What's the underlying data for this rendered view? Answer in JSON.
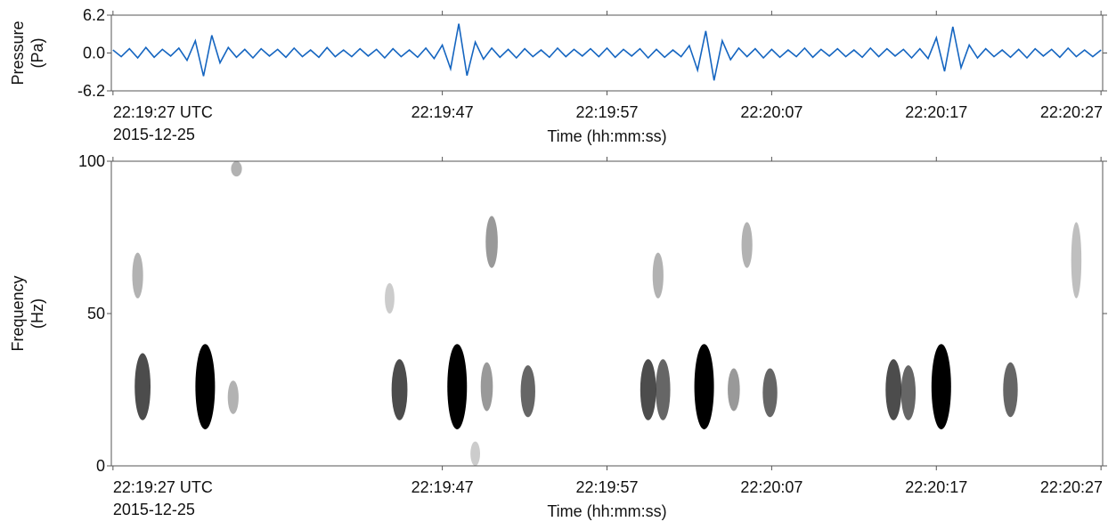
{
  "chart_data": [
    {
      "type": "line",
      "ylabel": [
        "Pressure",
        "(Pa)"
      ],
      "xlabel": "Time (hh:mm:ss)",
      "x_date": "2015-12-25",
      "color": "#1565c0",
      "xlim": [
        -0.1,
        60.1
      ],
      "ylim": [
        -6.2,
        6.2
      ],
      "yticks": [
        -6.2,
        {
          "value": 0,
          "label": "0.0"
        },
        6.2
      ],
      "xticks": [
        {
          "value": 0,
          "label": "22:19:27 UTC"
        },
        {
          "value": 20,
          "label": "22:19:47"
        },
        {
          "value": 30,
          "label": "22:19:57"
        },
        {
          "value": 40,
          "label": "22:20:07"
        },
        {
          "value": 50,
          "label": "22:20:17"
        },
        {
          "value": 60,
          "label": "22:20:27"
        }
      ],
      "x": [
        0,
        0.5,
        1,
        1.5,
        2,
        2.5,
        3,
        3.5,
        4,
        4.5,
        5,
        5.5,
        6,
        6.5,
        7,
        7.5,
        8,
        8.5,
        9,
        9.5,
        10,
        10.5,
        11,
        11.5,
        12,
        12.5,
        13,
        13.5,
        14,
        14.5,
        15,
        15.5,
        16,
        16.5,
        17,
        17.5,
        18,
        18.5,
        19,
        19.5,
        20,
        20.5,
        21,
        21.5,
        22,
        22.5,
        23,
        23.5,
        24,
        24.5,
        25,
        25.5,
        26,
        26.5,
        27,
        27.5,
        28,
        28.5,
        29,
        29.5,
        30,
        30.5,
        31,
        31.5,
        32,
        32.5,
        33,
        33.5,
        34,
        34.5,
        35,
        35.5,
        36,
        36.5,
        37,
        37.5,
        38,
        38.5,
        39,
        39.5,
        40,
        40.5,
        41,
        41.5,
        42,
        42.5,
        43,
        43.5,
        44,
        44.5,
        45,
        45.5,
        46,
        46.5,
        47,
        47.5,
        48,
        48.5,
        49,
        49.5,
        50,
        50.5,
        51,
        51.5,
        52,
        52.5,
        53,
        53.5,
        54,
        54.5,
        55,
        55.5,
        56,
        56.5,
        57,
        57.5,
        58,
        58.5,
        59,
        59.5,
        60
      ],
      "values": [
        0.5,
        -0.6,
        0.7,
        -0.8,
        0.9,
        -0.7,
        0.6,
        -0.5,
        0.8,
        -1.2,
        2.0,
        -3.8,
        2.9,
        -1.6,
        0.9,
        -0.7,
        0.6,
        -0.8,
        0.7,
        -0.5,
        0.6,
        -0.7,
        0.8,
        -0.6,
        0.5,
        -0.7,
        0.9,
        -0.6,
        0.5,
        -0.6,
        0.7,
        -0.5,
        0.6,
        -0.8,
        0.7,
        -0.6,
        0.5,
        -0.7,
        0.8,
        -0.9,
        1.3,
        -2.6,
        4.8,
        -3.7,
        1.8,
        -1.0,
        0.8,
        -0.7,
        0.6,
        -0.8,
        0.7,
        -0.6,
        0.5,
        -0.7,
        0.8,
        -0.6,
        0.6,
        -0.5,
        0.7,
        -0.6,
        0.8,
        -0.7,
        0.6,
        -0.5,
        0.7,
        -0.8,
        0.6,
        -0.7,
        0.5,
        -0.6,
        1.2,
        -2.8,
        3.6,
        -4.5,
        2.0,
        -1.1,
        0.8,
        -0.6,
        0.7,
        -0.8,
        0.6,
        -0.7,
        0.5,
        -0.6,
        0.8,
        -0.7,
        0.6,
        -0.5,
        0.7,
        -0.6,
        0.5,
        -0.7,
        0.8,
        -0.6,
        0.7,
        -0.5,
        0.6,
        -0.8,
        0.7,
        -0.9,
        2.5,
        -3.0,
        4.3,
        -2.4,
        1.3,
        -0.8,
        0.7,
        -0.6,
        0.5,
        -0.7,
        0.6,
        -0.8,
        0.7,
        -0.5,
        0.6,
        -0.7,
        0.8,
        -0.6,
        0.5,
        -0.6,
        0.5
      ]
    },
    {
      "type": "spectrogram",
      "ylabel": [
        "Frequency",
        "(Hz)"
      ],
      "xlabel": "Time (hh:mm:ss)",
      "x_date": "2015-12-25",
      "color": "#000000",
      "xlim": [
        -0.1,
        60.1
      ],
      "ylim": [
        0,
        100
      ],
      "yticks": [
        0,
        50,
        100
      ],
      "xticks": [
        {
          "value": 0,
          "label": "22:19:27 UTC"
        },
        {
          "value": 20,
          "label": "22:19:47"
        },
        {
          "value": 30,
          "label": "22:19:57"
        },
        {
          "value": 40,
          "label": "22:20:07"
        },
        {
          "value": 50,
          "label": "22:20:17"
        },
        {
          "value": 60,
          "label": "22:20:27"
        }
      ],
      "blobs": [
        {
          "t": 1.8,
          "f_low": 15,
          "f_high": 37,
          "intensity": 0.7
        },
        {
          "t": 5.6,
          "f_low": 12,
          "f_high": 40,
          "intensity": 1
        },
        {
          "t": 7.3,
          "f_low": 17,
          "f_high": 28,
          "intensity": 0.3
        },
        {
          "t": 1.5,
          "f_low": 55,
          "f_high": 70,
          "intensity": 0.3
        },
        {
          "t": 7.5,
          "f_low": 95,
          "f_high": 100,
          "intensity": 0.3
        },
        {
          "t": 17.4,
          "f_low": 15,
          "f_high": 35,
          "intensity": 0.7
        },
        {
          "t": 20.9,
          "f_low": 12,
          "f_high": 40,
          "intensity": 1
        },
        {
          "t": 22.7,
          "f_low": 18,
          "f_high": 34,
          "intensity": 0.4
        },
        {
          "t": 25.2,
          "f_low": 16,
          "f_high": 33,
          "intensity": 0.6
        },
        {
          "t": 23,
          "f_low": 65,
          "f_high": 82,
          "intensity": 0.4
        },
        {
          "t": 16.8,
          "f_low": 50,
          "f_high": 60,
          "intensity": 0.2
        },
        {
          "t": 22,
          "f_low": 0,
          "f_high": 8,
          "intensity": 0.2
        },
        {
          "t": 32.5,
          "f_low": 15,
          "f_high": 35,
          "intensity": 0.7
        },
        {
          "t": 33.4,
          "f_low": 15,
          "f_high": 35,
          "intensity": 0.6
        },
        {
          "t": 35.9,
          "f_low": 12,
          "f_high": 40,
          "intensity": 1
        },
        {
          "t": 37.7,
          "f_low": 18,
          "f_high": 32,
          "intensity": 0.4
        },
        {
          "t": 39.9,
          "f_low": 16,
          "f_high": 32,
          "intensity": 0.6
        },
        {
          "t": 33.1,
          "f_low": 55,
          "f_high": 70,
          "intensity": 0.3
        },
        {
          "t": 38.5,
          "f_low": 65,
          "f_high": 80,
          "intensity": 0.3
        },
        {
          "t": 47.4,
          "f_low": 15,
          "f_high": 35,
          "intensity": 0.7
        },
        {
          "t": 48.3,
          "f_low": 15,
          "f_high": 33,
          "intensity": 0.6
        },
        {
          "t": 50.3,
          "f_low": 12,
          "f_high": 40,
          "intensity": 1
        },
        {
          "t": 54.5,
          "f_low": 16,
          "f_high": 34,
          "intensity": 0.6
        },
        {
          "t": 58.5,
          "f_low": 55,
          "f_high": 80,
          "intensity": 0.25
        }
      ]
    }
  ]
}
